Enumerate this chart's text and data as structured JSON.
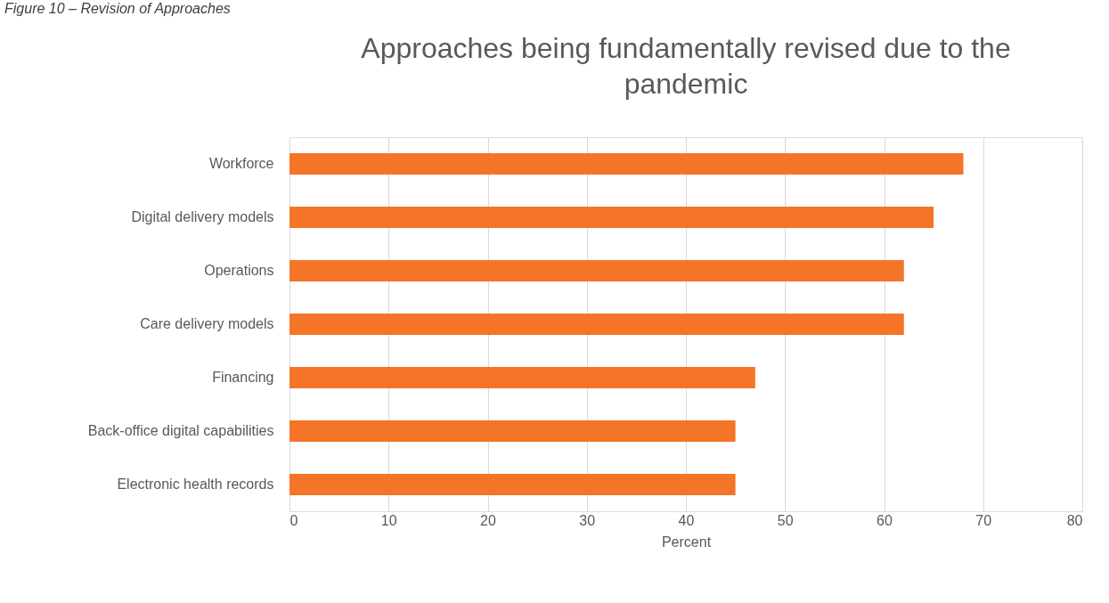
{
  "chart_data": {
    "type": "bar",
    "orientation": "horizontal",
    "title": "Approaches being fundamentally revised due to the pandemic",
    "xlabel": "Percent",
    "annotations": [
      "Figure 10 – Revision of Approaches"
    ],
    "categories": [
      "Workforce",
      "Digital delivery models",
      "Operations",
      "Care delivery models",
      "Financing",
      "Back-office digital capabilities",
      "Electronic health records"
    ],
    "values": [
      68,
      65,
      62,
      62,
      47,
      45,
      45
    ],
    "color": "#f47527",
    "xlim": [
      0,
      80
    ],
    "xticks": [
      0,
      10,
      20,
      30,
      40,
      50,
      60,
      70,
      80
    ],
    "grid": "x"
  }
}
